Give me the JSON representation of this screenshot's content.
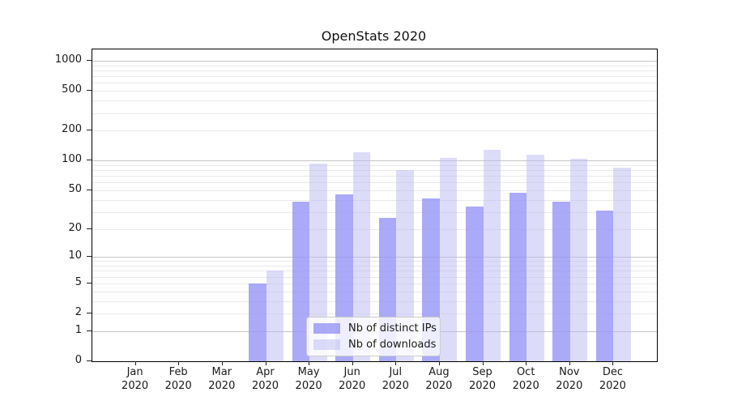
{
  "chart_data": {
    "type": "bar",
    "title": "OpenStats 2020",
    "categories": [
      "Jan 2020",
      "Feb 2020",
      "Mar 2020",
      "Apr 2020",
      "May 2020",
      "Jun 2020",
      "Jul 2020",
      "Aug 2020",
      "Sep 2020",
      "Oct 2020",
      "Nov 2020",
      "Dec 2020"
    ],
    "series": [
      {
        "name": "Nb of distinct IPs",
        "color": "rgba(149,149,246,0.8)",
        "values": [
          0,
          0,
          0,
          5,
          38,
          45,
          26,
          41,
          34,
          47,
          38,
          31
        ]
      },
      {
        "name": "Nb of downloads",
        "color": "rgba(185,185,243,0.5)",
        "values": [
          0,
          0,
          0,
          7,
          93,
          120,
          80,
          107,
          127,
          115,
          105,
          85
        ]
      }
    ],
    "xlabel": "",
    "ylabel": "",
    "yscale": "log10(value+1)",
    "yticks": [
      0,
      1,
      2,
      5,
      10,
      20,
      50,
      100,
      200,
      500,
      1000
    ],
    "ytick_labels": [
      "0",
      "1",
      "2",
      "5",
      "10",
      "20",
      "50",
      "100",
      "200",
      "500",
      "1000"
    ],
    "major_gridlines": [
      1,
      10,
      100,
      1000
    ],
    "minor_gridlines": [
      2,
      3,
      4,
      5,
      6,
      7,
      8,
      9,
      20,
      30,
      40,
      50,
      60,
      70,
      80,
      90,
      200,
      300,
      400,
      500,
      600,
      700,
      800,
      900
    ],
    "ylim_top_value": 1296,
    "grid": true,
    "legend_position": "lower center"
  },
  "colors": {
    "major_grid": "#c5c5c5",
    "minor_grid": "#e9e9e9",
    "axis": "#000000",
    "text": "#1a1a1a",
    "legend_border": "#cccccc",
    "legend_background": "rgba(255,255,255,0.8)"
  }
}
